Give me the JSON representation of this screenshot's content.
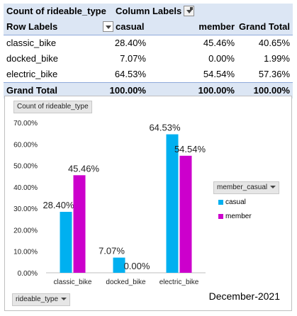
{
  "pivot": {
    "corner_label": "Count of rideable_type",
    "column_labels": "Column Labels",
    "row_labels": "Row Labels",
    "columns": [
      "casual",
      "member",
      "Grand Total"
    ],
    "rows": [
      {
        "label": "classic_bike",
        "values": [
          "28.40%",
          "45.46%",
          "40.65%"
        ]
      },
      {
        "label": "docked_bike",
        "values": [
          "7.07%",
          "0.00%",
          "1.99%"
        ]
      },
      {
        "label": "electric_bike",
        "values": [
          "64.53%",
          "54.54%",
          "57.36%"
        ]
      }
    ],
    "grand_total": {
      "label": "Grand Total",
      "values": [
        "100.00%",
        "100.00%",
        "100.00%"
      ]
    }
  },
  "chart_field_buttons": {
    "value_field": "Count of rideable_type",
    "axis_field": "rideable_type",
    "legend_field": "member_casual"
  },
  "caption": "December-2021",
  "colors": {
    "casual": "#00b0f0",
    "member": "#cc00cc"
  },
  "chart_data": {
    "type": "bar",
    "categories": [
      "classic_bike",
      "docked_bike",
      "electric_bike"
    ],
    "series": [
      {
        "name": "casual",
        "values": [
          28.4,
          7.07,
          64.53
        ],
        "labels": [
          "28.40%",
          "7.07%",
          "64.53%"
        ]
      },
      {
        "name": "member",
        "values": [
          45.46,
          0.0,
          54.54
        ],
        "labels": [
          "45.46%",
          "0.00%",
          "54.54%"
        ]
      }
    ],
    "yticks": [
      "0.00%",
      "10.00%",
      "20.00%",
      "30.00%",
      "40.00%",
      "50.00%",
      "60.00%",
      "70.00%"
    ],
    "ylim": [
      0,
      70
    ],
    "grid": false,
    "legend_position": "right"
  }
}
